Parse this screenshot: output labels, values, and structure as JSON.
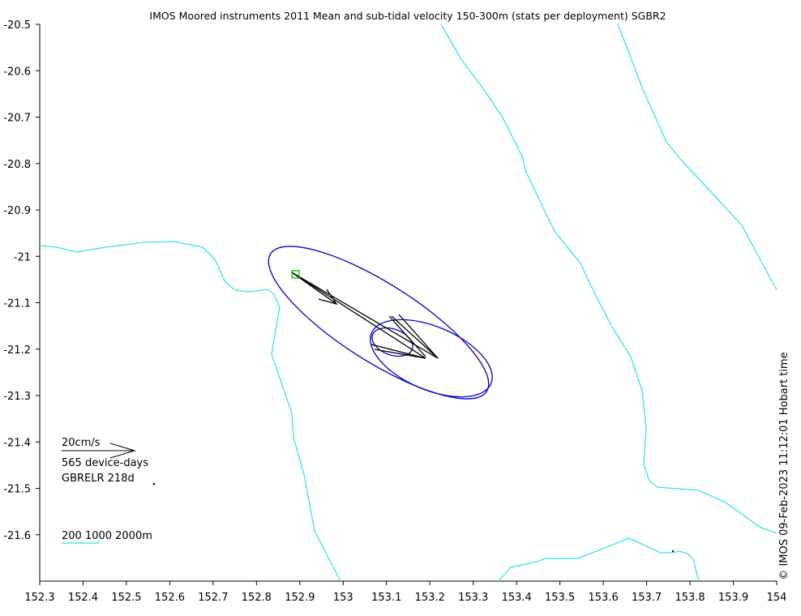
{
  "title": "IMOS Moored instruments 2011 Mean and sub-tidal velocity 150-300m (stats per deployment) SGBR2",
  "copyright": "© IMOS 09-Feb-2023 11:12:01 Hobart time",
  "legend": {
    "scale": "20cm/s",
    "device_days": "565 device-days",
    "site": "GBRELR 218d",
    "bathymetry": "200 1000 2000m"
  },
  "colors": {
    "contour": "#33e5e5",
    "ellipse": "#0000cc",
    "arrow": "#000000",
    "mooring": "#00bb00"
  },
  "axes": {
    "x_ticks": [
      "152.3",
      "152.4",
      "152.5",
      "152.6",
      "152.7",
      "152.8",
      "152.9",
      "153",
      "153.1",
      "153.2",
      "153.3",
      "153.4",
      "153.5",
      "153.6",
      "153.7",
      "153.8",
      "153.9",
      "154"
    ],
    "y_ticks": [
      "-20.5",
      "-20.6",
      "-20.7",
      "-20.8",
      "-20.9",
      "-21",
      "-21.1",
      "-21.2",
      "-21.3",
      "-21.4",
      "-21.5",
      "-21.6"
    ],
    "x_range": [
      152.3,
      154.0
    ],
    "y_range": [
      -21.7,
      -20.5
    ]
  }
}
